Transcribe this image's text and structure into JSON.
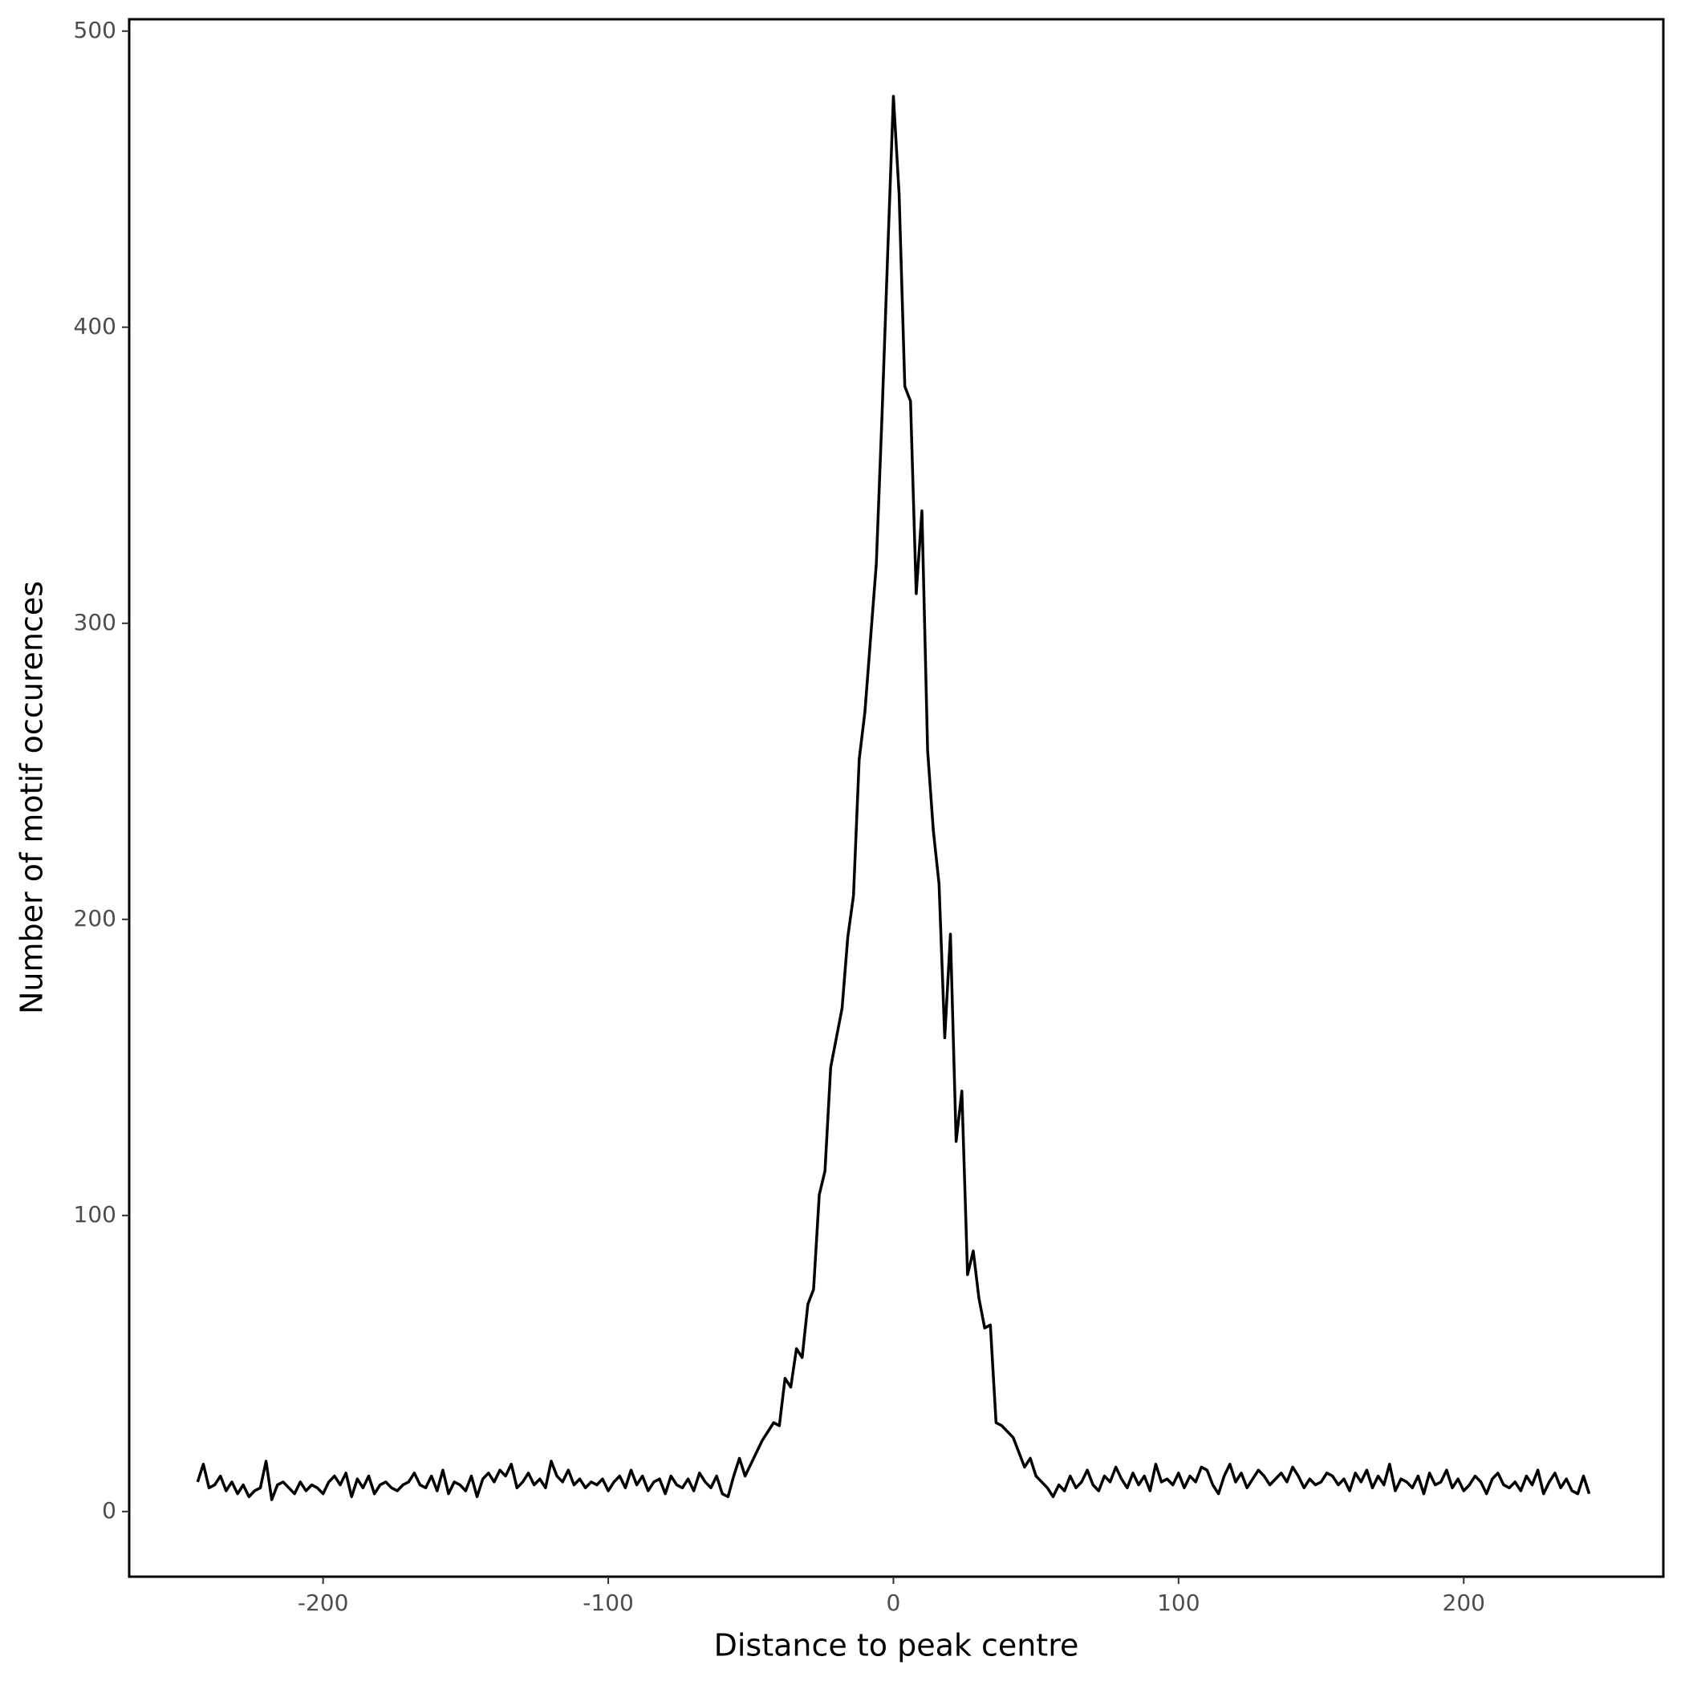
{
  "chart_data": {
    "type": "line",
    "xlabel": "Distance to peak centre",
    "ylabel": "Number of motif occurences",
    "xlim": [
      -268,
      270
    ],
    "ylim": [
      -22,
      504
    ],
    "xticks": [
      -200,
      -100,
      0,
      100,
      200
    ],
    "yticks": [
      0,
      100,
      200,
      300,
      400,
      500
    ],
    "x": [
      -244,
      -242,
      -240,
      -238,
      -236,
      -234,
      -232,
      -230,
      -228,
      -226,
      -224,
      -222,
      -220,
      -218,
      -216,
      -214,
      -212,
      -210,
      -208,
      -206,
      -204,
      -202,
      -200,
      -198,
      -196,
      -194,
      -192,
      -190,
      -188,
      -186,
      -184,
      -182,
      -180,
      -178,
      -176,
      -174,
      -172,
      -170,
      -168,
      -166,
      -164,
      -162,
      -160,
      -158,
      -156,
      -154,
      -152,
      -150,
      -148,
      -146,
      -144,
      -142,
      -140,
      -138,
      -136,
      -134,
      -132,
      -130,
      -128,
      -126,
      -124,
      -122,
      -120,
      -118,
      -116,
      -114,
      -112,
      -110,
      -108,
      -106,
      -104,
      -102,
      -100,
      -98,
      -96,
      -94,
      -92,
      -90,
      -88,
      -86,
      -84,
      -82,
      -80,
      -78,
      -76,
      -74,
      -72,
      -70,
      -68,
      -66,
      -64,
      -62,
      -60,
      -58,
      -56,
      -54,
      -52,
      -50,
      -48,
      -46,
      -44,
      -42,
      -40,
      -38,
      -36,
      -34,
      -32,
      -30,
      -28,
      -26,
      -24,
      -22,
      -20,
      -18,
      -16,
      -14,
      -12,
      -10,
      -8,
      -6,
      -4,
      -2,
      0,
      2,
      4,
      6,
      8,
      10,
      12,
      14,
      16,
      18,
      20,
      22,
      24,
      26,
      28,
      30,
      32,
      34,
      36,
      38,
      40,
      42,
      44,
      46,
      48,
      50,
      52,
      54,
      56,
      58,
      60,
      62,
      64,
      66,
      68,
      70,
      72,
      74,
      76,
      78,
      80,
      82,
      84,
      86,
      88,
      90,
      92,
      94,
      96,
      98,
      100,
      102,
      104,
      106,
      108,
      110,
      112,
      114,
      116,
      118,
      120,
      122,
      124,
      126,
      128,
      130,
      132,
      134,
      136,
      138,
      140,
      142,
      144,
      146,
      148,
      150,
      152,
      154,
      156,
      158,
      160,
      162,
      164,
      166,
      168,
      170,
      172,
      174,
      176,
      178,
      180,
      182,
      184,
      186,
      188,
      190,
      192,
      194,
      196,
      198,
      200,
      202,
      204,
      206,
      208,
      210,
      212,
      214,
      216,
      218,
      220,
      222,
      224,
      226,
      228,
      230,
      232,
      234,
      236,
      238,
      240,
      242,
      244
    ],
    "series": [
      {
        "color": "#000000",
        "values": [
          10,
          16,
          8,
          9,
          12,
          7,
          10,
          6,
          9,
          5,
          7,
          8,
          17,
          4,
          9,
          10,
          8,
          6,
          10,
          7,
          9,
          8,
          6,
          10,
          12,
          9,
          13,
          5,
          11,
          8,
          12,
          6,
          9,
          10,
          8,
          7,
          9,
          10,
          13,
          9,
          8,
          12,
          7,
          14,
          6,
          10,
          9,
          7,
          12,
          5,
          11,
          13,
          10,
          14,
          12,
          16,
          8,
          10,
          13,
          9,
          11,
          8,
          17,
          12,
          10,
          14,
          9,
          11,
          8,
          10,
          9,
          11,
          7,
          10,
          12,
          8,
          14,
          9,
          12,
          7,
          10,
          11,
          6,
          12,
          9,
          8,
          11,
          7,
          13,
          10,
          8,
          12,
          6,
          5,
          12,
          18,
          12,
          16,
          20,
          24,
          27,
          30,
          29,
          45,
          42,
          55,
          52,
          70,
          75,
          107,
          115,
          150,
          160,
          170,
          194,
          208,
          254,
          270,
          295,
          320,
          370,
          425,
          478,
          445,
          380,
          375,
          310,
          338,
          257,
          230,
          212,
          160,
          195,
          125,
          142,
          80,
          88,
          72,
          62,
          63,
          30,
          29,
          27,
          25,
          20,
          15,
          18,
          12,
          10,
          8,
          5,
          9,
          7,
          12,
          8,
          10,
          14,
          9,
          7,
          12,
          10,
          15,
          11,
          8,
          13,
          9,
          12,
          7,
          16,
          10,
          11,
          9,
          13,
          8,
          12,
          10,
          15,
          14,
          9,
          6,
          12,
          16,
          10,
          13,
          8,
          11,
          14,
          12,
          9,
          11,
          13,
          10,
          15,
          12,
          8,
          11,
          9,
          10,
          13,
          12,
          9,
          11,
          7,
          13,
          10,
          14,
          8,
          12,
          9,
          16,
          7,
          11,
          10,
          8,
          12,
          6,
          13,
          9,
          10,
          14,
          8,
          11,
          7,
          9,
          12,
          10,
          6,
          11,
          13,
          9,
          8,
          10,
          7,
          12,
          9,
          14,
          6,
          10,
          13,
          8,
          11,
          7,
          6,
          12,
          6
        ]
      }
    ]
  }
}
